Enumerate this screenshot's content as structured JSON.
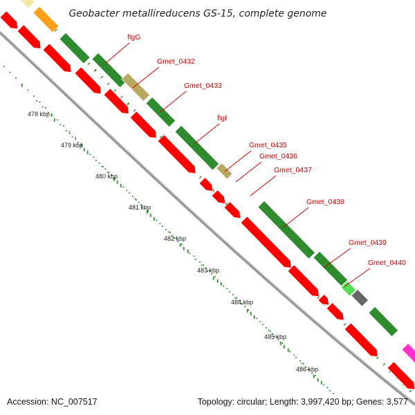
{
  "header": {
    "title": "Geobacter metallireducens GS-15, complete genome"
  },
  "footer": {
    "accession": "Accession: NC_007517",
    "summary": "Topology: circular; Length: 3,997,420 bp; Genes: 3,577"
  },
  "colors": {
    "forward_cds": "#2e8b2e",
    "reverse_cds": "#ff0000",
    "gene_label": "#cc0000",
    "backbone": "#999999",
    "tick": "#2e8b2e",
    "pale_yellow": "#f2e8a0",
    "orange": "#ff9f1a",
    "khaki": "#b8a860",
    "light_green": "#55dd55",
    "gray_gene": "#666666",
    "magenta": "#ff33cc"
  },
  "ruler": {
    "ticks": [
      {
        "label": "478 kbp",
        "kbp": 478
      },
      {
        "label": "479 kbp",
        "kbp": 479
      },
      {
        "label": "480 kbp",
        "kbp": 480
      },
      {
        "label": "481 kbp",
        "kbp": 481
      },
      {
        "label": "482 kbp",
        "kbp": 482
      },
      {
        "label": "483 kbp",
        "kbp": 483
      },
      {
        "label": "484 kbp",
        "kbp": 484
      },
      {
        "label": "485 kbp",
        "kbp": 485
      },
      {
        "label": "486 kbp",
        "kbp": 486
      }
    ]
  },
  "gene_labels": [
    {
      "name": "flgG"
    },
    {
      "name": "Gmet_0432"
    },
    {
      "name": "Gmet_0433"
    },
    {
      "name": "flgI"
    },
    {
      "name": "Gmet_0435"
    },
    {
      "name": "Gmet_0436"
    },
    {
      "name": "Gmet_0437"
    },
    {
      "name": "Gmet_0438"
    },
    {
      "name": "Gmet_0439"
    },
    {
      "name": "Gmet_0440"
    }
  ]
}
